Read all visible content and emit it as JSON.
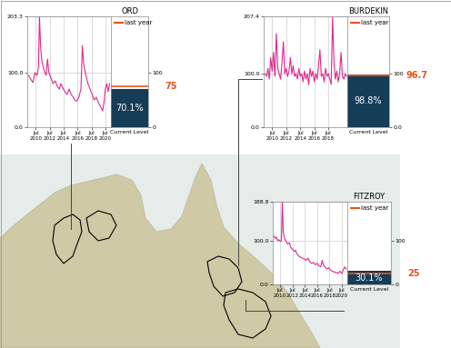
{
  "chart_data": [
    {
      "type": "line",
      "title": "ORD",
      "x": [
        2009.5,
        2009.8,
        2010.1,
        2010.4,
        2010.7,
        2010.9,
        2011.05,
        2011.2,
        2011.4,
        2011.7,
        2012.0,
        2012.2,
        2012.4,
        2012.7,
        2013.0,
        2013.3,
        2013.6,
        2013.9,
        2014.1,
        2014.4,
        2014.7,
        2015.0,
        2015.3,
        2015.6,
        2015.9,
        2016.1,
        2016.4,
        2016.7,
        2017.0,
        2017.2,
        2017.4,
        2017.7,
        2018.0,
        2018.3,
        2018.6,
        2018.9,
        2019.2,
        2019.5,
        2019.8,
        2020.1,
        2020.3,
        2020.5,
        2020.7,
        2020.9,
        2021.1
      ],
      "series": [
        {
          "color": "#e0288f",
          "values": [
            95,
            88,
            82,
            100,
            95,
            110,
            203.3,
            150,
            120,
            105,
            95,
            125,
            100,
            90,
            80,
            85,
            75,
            70,
            80,
            72,
            65,
            60,
            70,
            60,
            55,
            50,
            48,
            55,
            70,
            150,
            115,
            95,
            80,
            70,
            60,
            50,
            55,
            45,
            38,
            30,
            45,
            70,
            80,
            65,
            80
          ]
        }
      ],
      "xlim": [
        2009.3,
        2021.3
      ],
      "xticks": [
        {
          "value": 2010.5,
          "label": "Jul\n2010"
        },
        {
          "value": 2012.5,
          "label": "Jul\n2012"
        },
        {
          "value": 2014.5,
          "label": "Jul\n2014"
        },
        {
          "value": 2016.5,
          "label": "Jul\n2016"
        },
        {
          "value": 2018.5,
          "label": "Jul\n2018"
        },
        {
          "value": 2020.5,
          "label": "Jul\n2020"
        }
      ],
      "ylim": [
        0,
        203.3
      ],
      "yticks": [
        {
          "value": 0,
          "label": "0.0"
        },
        {
          "value": 100,
          "label": "100.0"
        },
        {
          "value": 203.3,
          "label": "203.3"
        }
      ],
      "y2lim": [
        0,
        203.3
      ],
      "y2ticks": [
        0,
        100
      ],
      "grid": true,
      "legend": "upper left",
      "current_level": {
        "label": "Current Level",
        "value": 70.1,
        "value_label": "70.1%",
        "color": "#163d58"
      },
      "last_year": {
        "name": "last year",
        "value": 75,
        "color": "#e8541e"
      }
    },
    {
      "type": "line",
      "title": "BURDEKIN",
      "x": [
        2009.5,
        2009.7,
        2009.9,
        2010.1,
        2010.3,
        2010.5,
        2010.7,
        2010.9,
        2011.1,
        2011.3,
        2011.5,
        2011.7,
        2011.9,
        2012.1,
        2012.3,
        2012.5,
        2012.7,
        2012.9,
        2013.1,
        2013.3,
        2013.5,
        2013.7,
        2013.9,
        2014.1,
        2014.3,
        2014.5,
        2014.7,
        2014.9,
        2015.1,
        2015.3,
        2015.5,
        2015.7,
        2015.9,
        2016.1,
        2016.3,
        2016.5,
        2016.7,
        2016.9,
        2017.1,
        2017.3,
        2017.5,
        2017.7,
        2017.9,
        2018.1,
        2018.3,
        2018.5,
        2018.7,
        2018.9,
        2019.1,
        2019.3,
        2019.5,
        2019.7,
        2019.9,
        2020.1,
        2020.3,
        2020.5,
        2020.7,
        2020.9,
        2021.1
      ],
      "series": [
        {
          "color": "#e0288f",
          "values": [
            100,
            95,
            110,
            90,
            130,
            105,
            140,
            95,
            175,
            110,
            100,
            90,
            120,
            160,
            100,
            110,
            95,
            105,
            130,
            100,
            115,
            95,
            100,
            90,
            110,
            95,
            100,
            85,
            105,
            90,
            100,
            80,
            110,
            95,
            105,
            85,
            100,
            90,
            115,
            145,
            95,
            100,
            85,
            110,
            95,
            100,
            90,
            80,
            207.4,
            120,
            90,
            105,
            85,
            100,
            140,
            95,
            90,
            100,
            95
          ]
        }
      ],
      "xlim": [
        2009.3,
        2021.2
      ],
      "xticks": [
        {
          "value": 2010.5,
          "label": "Jul\n2010"
        },
        {
          "value": 2012.5,
          "label": "Jul\n2012"
        },
        {
          "value": 2014.5,
          "label": "Jul\n2014"
        },
        {
          "value": 2016.5,
          "label": "Jul\n2016"
        },
        {
          "value": 2018.5,
          "label": "Jul\n2018"
        }
      ],
      "ylim": [
        0,
        207.4
      ],
      "yticks": [
        {
          "value": 0,
          "label": "0.0"
        },
        {
          "value": 100,
          "label": "100.0"
        },
        {
          "value": 207.4,
          "label": "207.4"
        }
      ],
      "y2lim": [
        0,
        207.4
      ],
      "y2ticks": [
        {
          "value": 0,
          "label": "0.0"
        },
        100
      ],
      "grid": true,
      "legend": "upper left",
      "current_level": {
        "label": "Current Level",
        "value": 98.8,
        "value_label": "98.8%",
        "color": "#163d58"
      },
      "last_year": {
        "name": "last year",
        "value": 96.7,
        "color": "#e8541e"
      }
    },
    {
      "type": "line",
      "title": "FITZROY",
      "x": [
        2009.5,
        2009.7,
        2009.9,
        2010.1,
        2010.3,
        2010.5,
        2010.7,
        2010.85,
        2011.0,
        2011.2,
        2011.4,
        2011.7,
        2012.0,
        2012.2,
        2012.5,
        2012.8,
        2013.0,
        2013.2,
        2013.5,
        2013.8,
        2014.1,
        2014.4,
        2014.7,
        2015.0,
        2015.3,
        2015.6,
        2015.9,
        2016.2,
        2016.5,
        2016.8,
        2017.1,
        2017.3,
        2017.5,
        2017.8,
        2018.1,
        2018.4,
        2018.7,
        2019.0,
        2019.3,
        2019.6,
        2019.9,
        2020.2,
        2020.5,
        2020.8,
        2021.0,
        2021.2
      ],
      "series": [
        {
          "color": "#e0288f",
          "values": [
            110,
            105,
            108,
            100,
            102,
            98,
            100,
            188.8,
            120,
            105,
            100,
            92,
            95,
            85,
            80,
            75,
            78,
            70,
            65,
            62,
            60,
            58,
            55,
            60,
            52,
            48,
            50,
            45,
            48,
            42,
            40,
            55,
            45,
            40,
            35,
            38,
            32,
            30,
            28,
            27,
            25,
            30,
            25,
            35,
            40,
            35
          ]
        }
      ],
      "xlim": [
        2009.3,
        2021.4
      ],
      "xticks": [
        {
          "value": 2010.5,
          "label": "Jul\n2010"
        },
        {
          "value": 2012.5,
          "label": "Jul\n2012"
        },
        {
          "value": 2014.5,
          "label": "Jul\n2014"
        },
        {
          "value": 2016.5,
          "label": "Jul\n2016"
        },
        {
          "value": 2018.5,
          "label": "Jul\n2018"
        },
        {
          "value": 2020.5,
          "label": "Jul\n2020"
        }
      ],
      "ylim": [
        0,
        188.8
      ],
      "yticks": [
        {
          "value": 0,
          "label": "0.0"
        },
        {
          "value": 100,
          "label": "100.0"
        },
        {
          "value": 188.8,
          "label": "188.8"
        }
      ],
      "y2lim": [
        0,
        188.8
      ],
      "y2ticks": [
        0,
        100
      ],
      "grid": true,
      "legend": "upper left",
      "current_level": {
        "label": "Current Level",
        "value": 30.1,
        "value_label": "30.1%",
        "color": "#163d58"
      },
      "last_year": {
        "name": "last year",
        "value": 25,
        "color": "#e8541e"
      }
    }
  ]
}
